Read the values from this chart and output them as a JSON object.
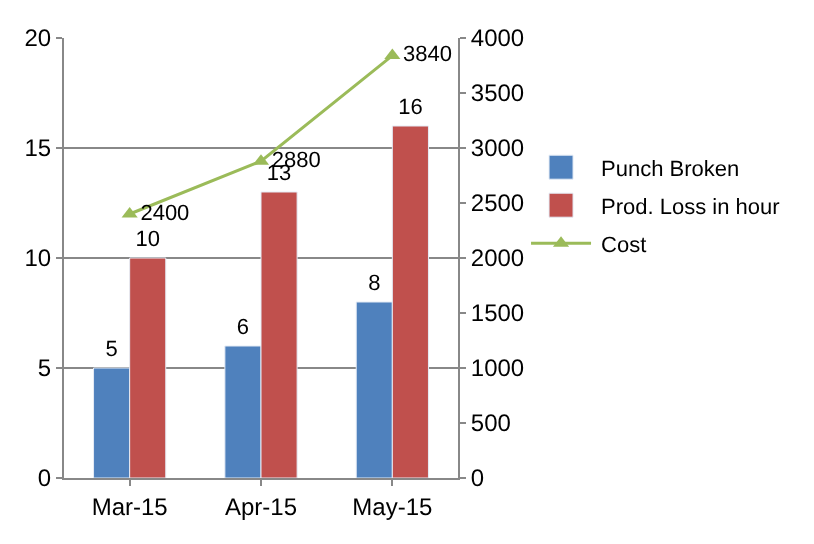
{
  "chart_data": {
    "type": "bar",
    "categories": [
      "Mar-15",
      "Apr-15",
      "May-15"
    ],
    "series": [
      {
        "name": "Punch Broken",
        "color": "#4f81bd",
        "values": [
          5,
          6,
          8
        ]
      },
      {
        "name": "Prod. Loss in hour",
        "color": "#c0504d",
        "values": [
          10,
          13,
          16
        ]
      },
      {
        "name": "Cost",
        "color": "#9bbb59",
        "values": [
          2400,
          2880,
          3840
        ],
        "type": "line",
        "axis": "y2",
        "marker": "triangle"
      }
    ],
    "ylim": [
      0,
      20
    ],
    "yticks": [
      0,
      5,
      10,
      15,
      20
    ],
    "y2lim": [
      0,
      4000
    ],
    "y2ticks": [
      0,
      500,
      1000,
      1500,
      2000,
      2500,
      3000,
      3500,
      4000
    ],
    "grid": "y",
    "legend": "right",
    "data_labels": true
  }
}
